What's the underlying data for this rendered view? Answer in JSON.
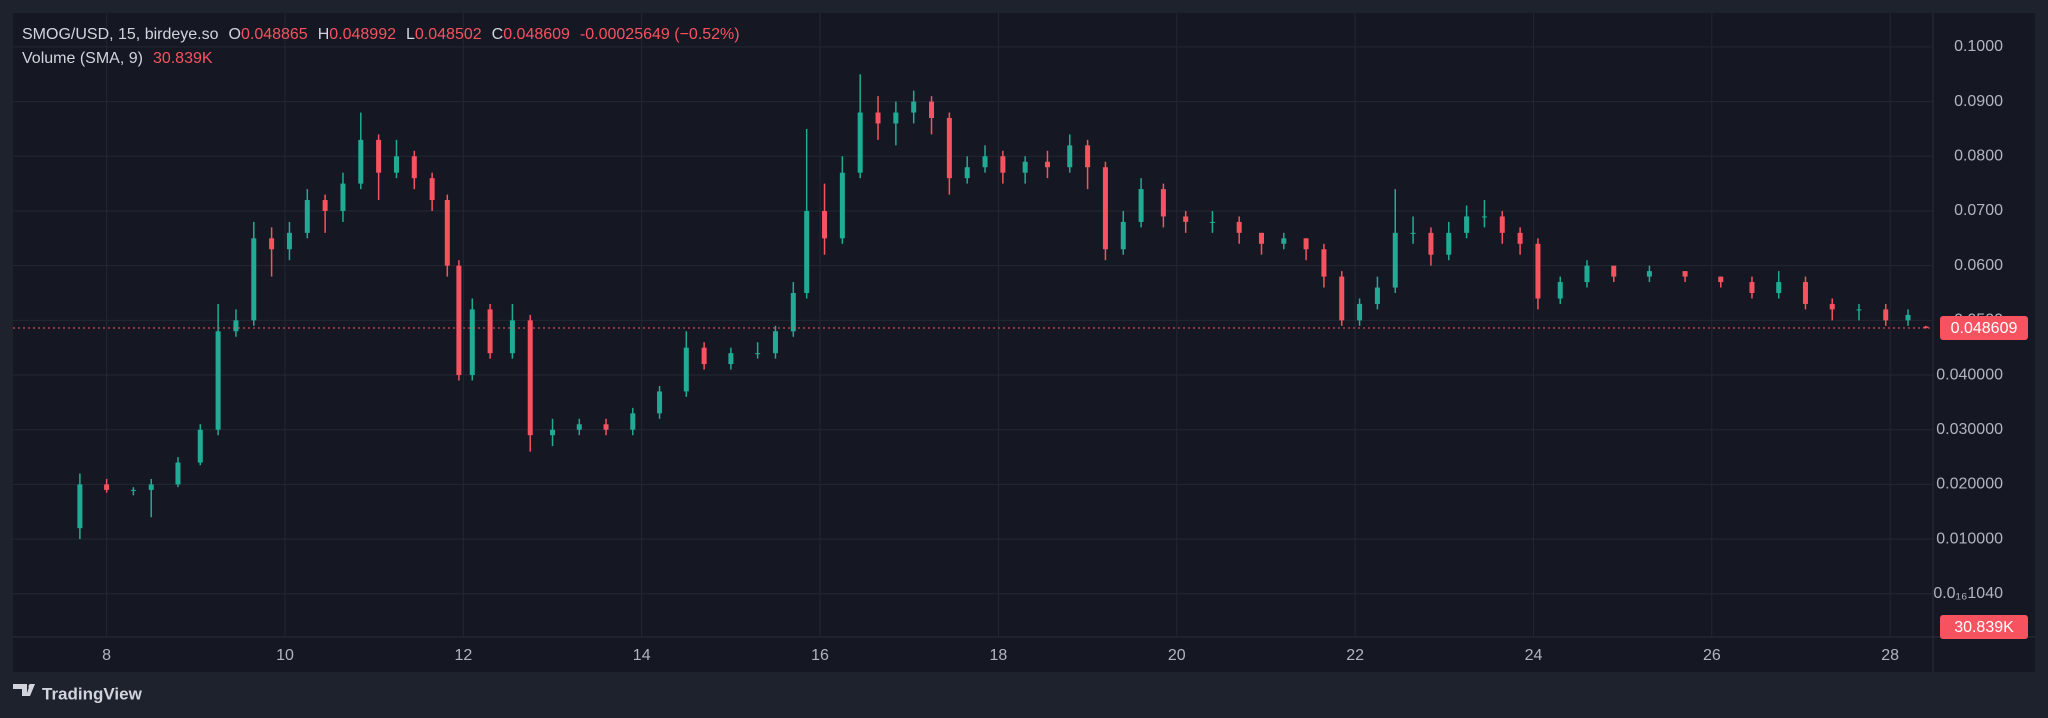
{
  "header": {
    "symbol": "SMOG/USD, 15, birdeye.so",
    "ohlc_letters": [
      "O",
      "H",
      "L",
      "C"
    ],
    "change": "-0.00025649 (−0.52%)",
    "volume_name": "Volume (SMA, 9)",
    "volume_value": "30.839K"
  },
  "footer": "TradingView",
  "chart_data": {
    "type": "candlestick",
    "up_color": "#22ab94",
    "down_color": "#f7525f",
    "grid": true,
    "xlim": [
      6.95,
      28.48
    ],
    "xticks": [
      8,
      10,
      12,
      14,
      16,
      18,
      20,
      22,
      24,
      26,
      28
    ],
    "ylim": [
      -0.0079,
      0.1062
    ],
    "yticks": [
      {
        "value": 0.1,
        "label": "0.1000"
      },
      {
        "value": 0.09,
        "label": "0.0900"
      },
      {
        "value": 0.08,
        "label": "0.0800"
      },
      {
        "value": 0.07,
        "label": "0.0700"
      },
      {
        "value": 0.06,
        "label": "0.0600"
      },
      {
        "value": 0.05,
        "label": "0.0500"
      },
      {
        "value": 0.04,
        "label": "0.040000"
      },
      {
        "value": 0.03,
        "label": "0.030000"
      },
      {
        "value": 0.02,
        "label": "0.020000"
      },
      {
        "value": 0.01,
        "label": "0.010000"
      },
      {
        "value": 1.04e-17,
        "label": "0.0₁₆1040"
      }
    ],
    "x": [
      7.7,
      8.0,
      8.3,
      8.5,
      8.8,
      9.05,
      9.25,
      9.45,
      9.65,
      9.85,
      10.05,
      10.25,
      10.45,
      10.65,
      10.85,
      11.05,
      11.25,
      11.45,
      11.65,
      11.82,
      11.95,
      12.1,
      12.3,
      12.55,
      12.75,
      13.0,
      13.3,
      13.6,
      13.9,
      14.2,
      14.5,
      14.7,
      15.0,
      15.3,
      15.5,
      15.7,
      15.85,
      16.05,
      16.25,
      16.45,
      16.65,
      16.85,
      17.05,
      17.25,
      17.45,
      17.65,
      17.85,
      18.05,
      18.3,
      18.55,
      18.8,
      19.0,
      19.2,
      19.4,
      19.6,
      19.85,
      20.1,
      20.4,
      20.7,
      20.95,
      21.2,
      21.45,
      21.65,
      21.85,
      22.05,
      22.25,
      22.45,
      22.65,
      22.85,
      23.05,
      23.25,
      23.45,
      23.65,
      23.85,
      24.05,
      24.3,
      24.6,
      24.9,
      25.3,
      25.7,
      26.1,
      26.45,
      26.75,
      27.05,
      27.35,
      27.65,
      27.95,
      28.2,
      28.4
    ],
    "open": [
      0.012,
      0.02,
      0.019,
      0.019,
      0.02,
      0.024,
      0.03,
      0.048,
      0.05,
      0.065,
      0.063,
      0.066,
      0.072,
      0.07,
      0.075,
      0.083,
      0.077,
      0.08,
      0.076,
      0.072,
      0.06,
      0.04,
      0.052,
      0.044,
      0.05,
      0.029,
      0.03,
      0.031,
      0.03,
      0.033,
      0.037,
      0.045,
      0.042,
      0.044,
      0.044,
      0.048,
      0.055,
      0.07,
      0.065,
      0.077,
      0.088,
      0.086,
      0.088,
      0.09,
      0.087,
      0.076,
      0.078,
      0.08,
      0.077,
      0.079,
      0.078,
      0.082,
      0.078,
      0.063,
      0.068,
      0.074,
      0.069,
      0.068,
      0.068,
      0.066,
      0.064,
      0.065,
      0.063,
      0.058,
      0.05,
      0.053,
      0.056,
      0.066,
      0.066,
      0.062,
      0.066,
      0.069,
      0.069,
      0.066,
      0.064,
      0.054,
      0.057,
      0.06,
      0.058,
      0.059,
      0.058,
      0.057,
      0.055,
      0.057,
      0.053,
      0.052,
      0.052,
      0.05,
      0.048865
    ],
    "high": [
      0.022,
      0.021,
      0.0195,
      0.021,
      0.025,
      0.031,
      0.053,
      0.052,
      0.068,
      0.067,
      0.068,
      0.074,
      0.073,
      0.077,
      0.088,
      0.084,
      0.083,
      0.081,
      0.077,
      0.073,
      0.061,
      0.054,
      0.053,
      0.053,
      0.051,
      0.032,
      0.032,
      0.032,
      0.034,
      0.038,
      0.048,
      0.046,
      0.045,
      0.046,
      0.049,
      0.057,
      0.085,
      0.075,
      0.08,
      0.095,
      0.091,
      0.09,
      0.092,
      0.091,
      0.088,
      0.08,
      0.082,
      0.081,
      0.08,
      0.081,
      0.084,
      0.083,
      0.079,
      0.07,
      0.076,
      0.075,
      0.07,
      0.07,
      0.069,
      0.066,
      0.066,
      0.065,
      0.064,
      0.059,
      0.054,
      0.058,
      0.074,
      0.069,
      0.067,
      0.068,
      0.071,
      0.072,
      0.07,
      0.067,
      0.065,
      0.058,
      0.061,
      0.06,
      0.06,
      0.059,
      0.058,
      0.058,
      0.059,
      0.058,
      0.054,
      0.053,
      0.053,
      0.052,
      0.048992
    ],
    "low": [
      0.01,
      0.0185,
      0.018,
      0.014,
      0.0195,
      0.0235,
      0.029,
      0.047,
      0.049,
      0.058,
      0.061,
      0.065,
      0.066,
      0.068,
      0.074,
      0.072,
      0.076,
      0.074,
      0.07,
      0.058,
      0.039,
      0.039,
      0.043,
      0.043,
      0.026,
      0.027,
      0.029,
      0.029,
      0.029,
      0.032,
      0.036,
      0.041,
      0.041,
      0.043,
      0.043,
      0.047,
      0.054,
      0.062,
      0.064,
      0.076,
      0.083,
      0.082,
      0.086,
      0.084,
      0.073,
      0.075,
      0.077,
      0.075,
      0.075,
      0.076,
      0.077,
      0.074,
      0.061,
      0.062,
      0.067,
      0.067,
      0.066,
      0.066,
      0.064,
      0.062,
      0.063,
      0.061,
      0.056,
      0.049,
      0.049,
      0.052,
      0.055,
      0.064,
      0.06,
      0.061,
      0.065,
      0.067,
      0.064,
      0.062,
      0.052,
      0.053,
      0.056,
      0.057,
      0.057,
      0.057,
      0.056,
      0.054,
      0.054,
      0.052,
      0.05,
      0.05,
      0.049,
      0.049,
      0.048502
    ],
    "close": [
      0.02,
      0.019,
      0.019,
      0.02,
      0.024,
      0.03,
      0.048,
      0.05,
      0.065,
      0.063,
      0.066,
      0.072,
      0.07,
      0.075,
      0.083,
      0.077,
      0.08,
      0.076,
      0.072,
      0.06,
      0.04,
      0.052,
      0.044,
      0.05,
      0.029,
      0.03,
      0.031,
      0.03,
      0.033,
      0.037,
      0.045,
      0.042,
      0.044,
      0.044,
      0.048,
      0.055,
      0.07,
      0.065,
      0.077,
      0.088,
      0.086,
      0.088,
      0.09,
      0.087,
      0.076,
      0.078,
      0.08,
      0.077,
      0.079,
      0.078,
      0.082,
      0.078,
      0.063,
      0.068,
      0.074,
      0.069,
      0.068,
      0.068,
      0.066,
      0.064,
      0.065,
      0.063,
      0.058,
      0.05,
      0.053,
      0.056,
      0.066,
      0.066,
      0.062,
      0.066,
      0.069,
      0.069,
      0.066,
      0.064,
      0.054,
      0.057,
      0.06,
      0.058,
      0.059,
      0.058,
      0.057,
      0.055,
      0.057,
      0.053,
      0.052,
      0.052,
      0.05,
      0.051,
      0.048609
    ]
  }
}
